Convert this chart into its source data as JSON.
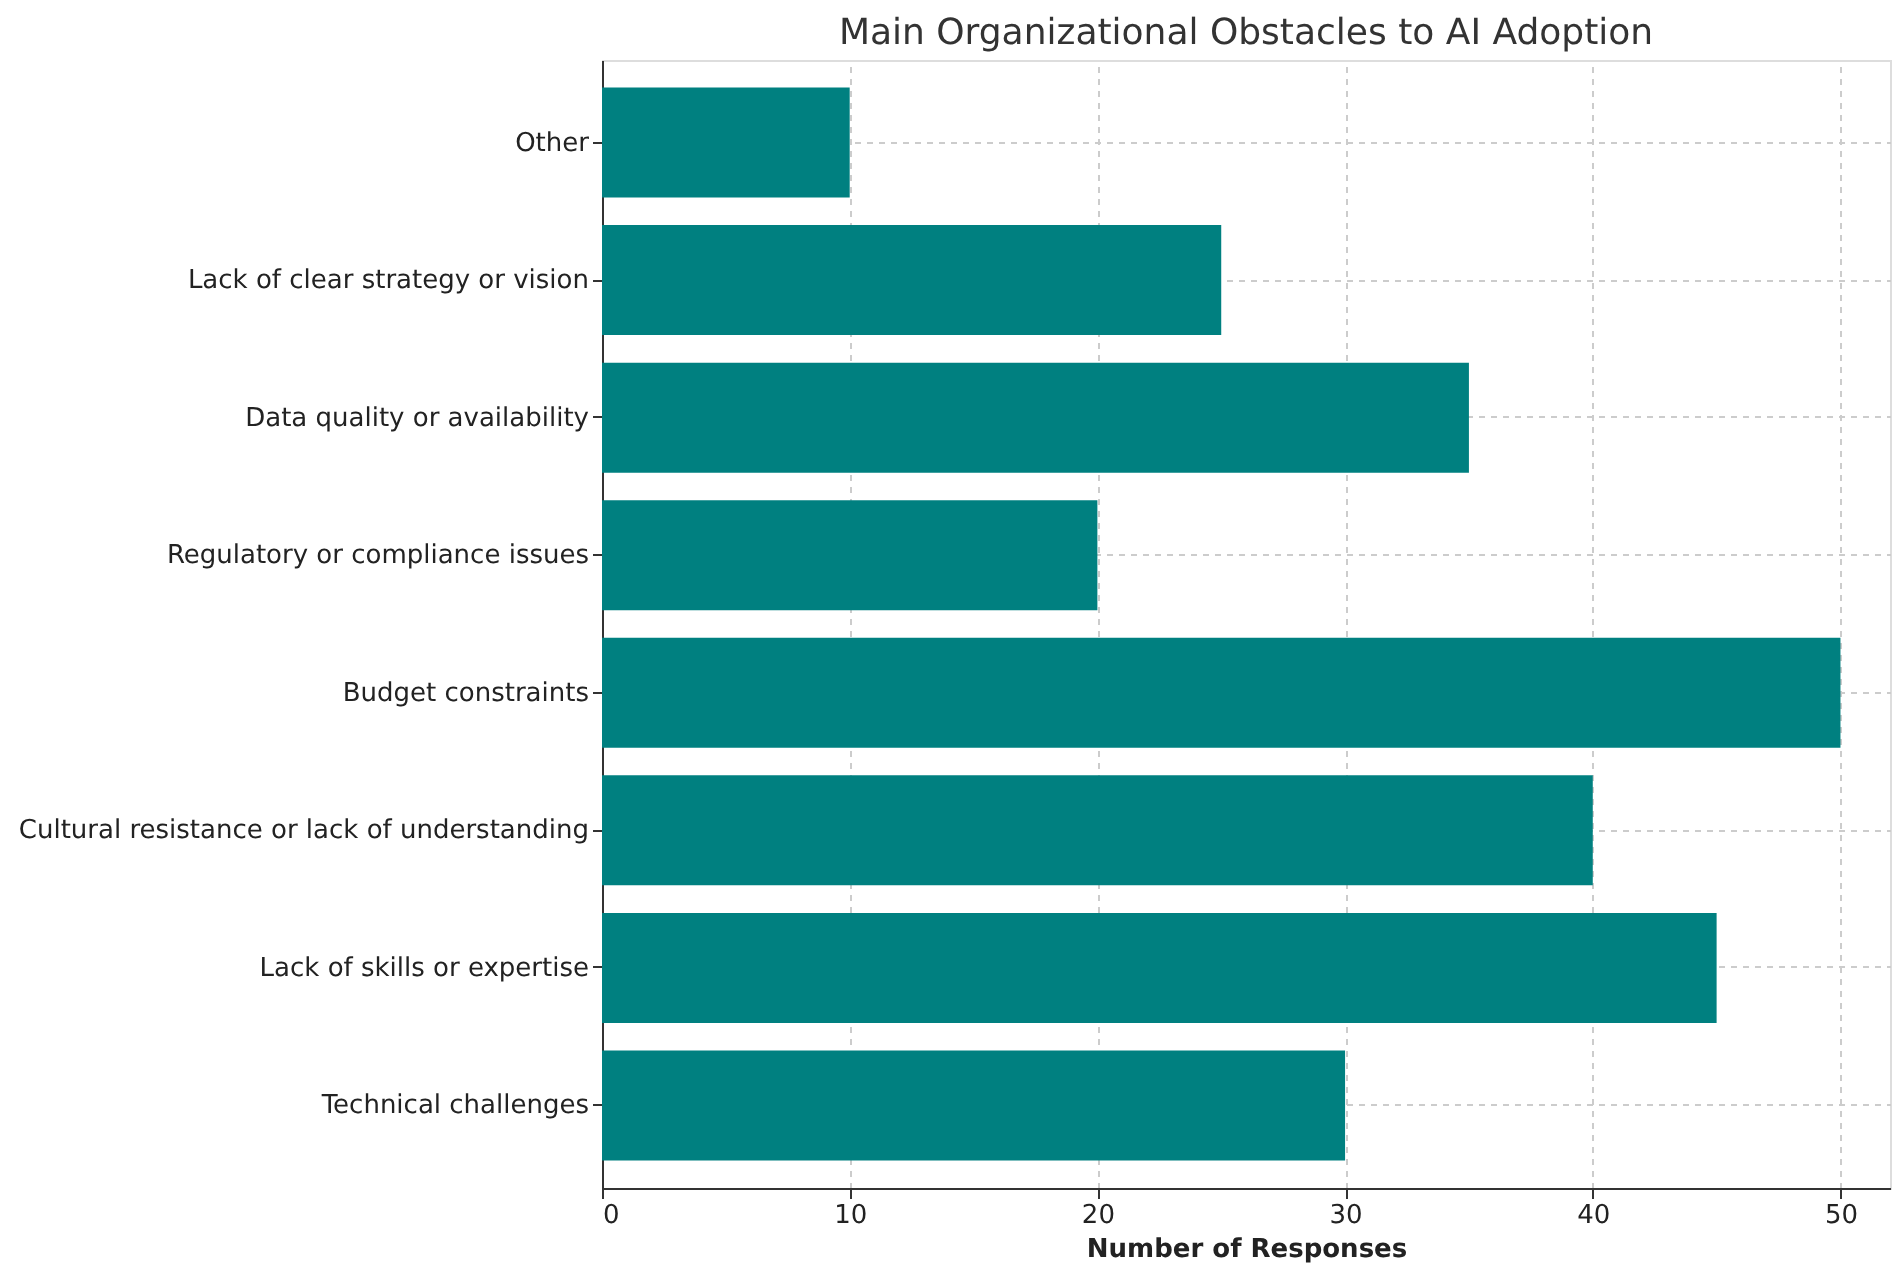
{
  "chart_data": {
    "type": "bar",
    "orientation": "horizontal",
    "title": "Main Organizational Obstacles to AI Adoption",
    "xlabel": "Number of Responses",
    "categories": [
      "Other",
      "Lack of clear strategy or vision",
      "Data quality or availability",
      "Regulatory or compliance issues",
      "Budget constraints",
      "Cultural resistance or lack of understanding",
      "Lack of skills or expertise",
      "Technical challenges"
    ],
    "values": [
      10,
      25,
      35,
      20,
      50,
      40,
      45,
      30
    ],
    "color": "#008080",
    "xlim": [
      0,
      52
    ],
    "xticks": [
      0,
      10,
      20,
      30,
      40,
      50
    ],
    "grid": true
  }
}
